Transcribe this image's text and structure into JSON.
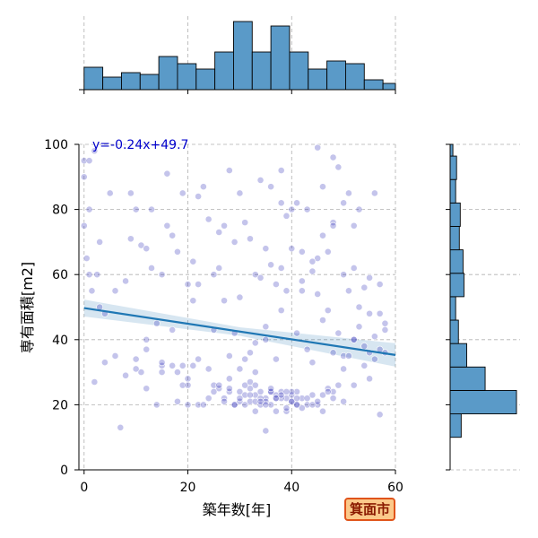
{
  "badge": {
    "label": "箕面市"
  },
  "chart_data": {
    "type": "scatter",
    "title": "",
    "xlabel": "築年数[年]",
    "ylabel": "専有面積[m2]",
    "xlim": [
      -1,
      60
    ],
    "ylim": [
      0,
      100
    ],
    "xticks": [
      0,
      20,
      40,
      60
    ],
    "yticks": [
      0,
      20,
      40,
      60,
      80,
      100
    ],
    "grid": true,
    "point_color": "#2a2ab8",
    "regression": {
      "slope": -0.24,
      "intercept": 49.7,
      "label": "y=-0.24x+49.7",
      "color": "#1f77b4"
    },
    "marginal_x_hist": {
      "bin_edges": [
        0,
        3.6,
        7.2,
        10.8,
        14.4,
        18,
        21.6,
        25.2,
        28.8,
        32.4,
        36,
        39.6,
        43.2,
        46.8,
        50.4,
        54,
        57.6,
        60
      ],
      "counts": [
        25,
        14,
        19,
        17,
        37,
        29,
        23,
        42,
        76,
        42,
        71,
        42,
        23,
        32,
        29,
        11,
        7
      ]
    },
    "marginal_y_hist": {
      "bin_edges": [
        10,
        17.2,
        24.4,
        31.6,
        38.8,
        46,
        53.2,
        60.4,
        67.6,
        74.8,
        82,
        89.2,
        96.4,
        100
      ],
      "counts": [
        12,
        72,
        38,
        18,
        9,
        6,
        15,
        14,
        10,
        11,
        6,
        7,
        3
      ]
    },
    "series": [
      {
        "x": [
          0,
          0,
          0,
          0.5,
          1,
          1,
          1.5,
          2,
          2.5,
          3,
          3,
          4,
          5,
          6,
          7,
          8,
          9,
          9,
          10,
          10,
          11,
          11,
          12,
          12,
          12,
          13,
          13,
          14,
          14,
          15,
          15,
          15,
          16,
          16,
          17,
          17,
          17,
          18,
          18,
          19,
          19,
          19,
          20,
          20,
          20,
          21,
          21,
          21,
          22,
          22,
          22,
          23,
          23,
          24,
          24,
          24,
          25,
          25,
          25,
          26,
          26,
          26,
          27,
          27,
          27,
          28,
          28,
          28,
          29,
          29,
          29,
          30,
          30,
          30,
          30,
          31,
          31,
          31,
          31,
          32,
          32,
          32,
          32,
          33,
          33,
          33,
          33,
          34,
          34,
          34,
          34,
          35,
          35,
          35,
          35,
          36,
          36,
          36,
          36,
          37,
          37,
          37,
          37,
          38,
          38,
          38,
          38,
          39,
          39,
          39,
          39,
          40,
          40,
          40,
          40,
          41,
          41,
          41,
          41,
          42,
          42,
          42,
          43,
          43,
          43,
          44,
          44,
          44,
          45,
          45,
          45,
          46,
          46,
          46,
          47,
          47,
          47,
          48,
          48,
          48,
          49,
          49,
          50,
          50,
          50,
          51,
          51,
          52,
          52,
          52,
          53,
          53,
          54,
          54,
          55,
          55,
          56,
          56,
          57,
          57,
          58,
          58,
          35,
          38,
          32,
          30,
          33,
          36,
          42,
          28,
          31,
          34,
          37,
          40,
          29,
          27,
          26,
          39,
          41,
          43,
          44,
          45,
          46,
          47,
          48,
          49,
          50,
          51,
          52,
          53,
          54,
          55,
          56,
          57,
          58,
          50,
          48,
          45,
          42,
          38,
          35,
          33,
          30,
          28,
          25,
          22,
          20,
          18,
          15,
          12,
          10,
          8,
          6,
          4,
          2,
          1,
          44,
          46,
          48,
          52,
          55,
          57,
          32,
          33,
          34,
          35,
          36,
          37,
          38,
          39,
          40,
          41
        ],
        "y": [
          95,
          90,
          75,
          65,
          80,
          60,
          55,
          98,
          60,
          70,
          50,
          48,
          85,
          55,
          13,
          58,
          71,
          85,
          34,
          80,
          69,
          30,
          68,
          25,
          40,
          80,
          62,
          45,
          20,
          60,
          30,
          32,
          91,
          75,
          72,
          43,
          32,
          67,
          21,
          85,
          32,
          26,
          57,
          28,
          20,
          64,
          52,
          32,
          84,
          57,
          20,
          87,
          20,
          77,
          31,
          22,
          60,
          43,
          26,
          73,
          62,
          25,
          75,
          52,
          22,
          92,
          35,
          24,
          70,
          42,
          20,
          85,
          53,
          24,
          21,
          76,
          34,
          23,
          20,
          71,
          36,
          25,
          21,
          60,
          30,
          23,
          18,
          89,
          59,
          24,
          20,
          68,
          40,
          22,
          12,
          87,
          63,
          24,
          20,
          57,
          34,
          22,
          18,
          92,
          82,
          62,
          24,
          78,
          55,
          22,
          18,
          80,
          68,
          23,
          21,
          82,
          42,
          24,
          20,
          67,
          55,
          22,
          80,
          37,
          20,
          61,
          33,
          23,
          99,
          54,
          20,
          87,
          46,
          18,
          67,
          49,
          25,
          96,
          36,
          24,
          93,
          42,
          60,
          35,
          21,
          85,
          55,
          75,
          40,
          26,
          80,
          50,
          56,
          32,
          48,
          28,
          85,
          41,
          57,
          17,
          43,
          36,
          21,
          22,
          23,
          22,
          21,
          24,
          19,
          25,
          26,
          22,
          23,
          24,
          20,
          21,
          26,
          19,
          20,
          22,
          20,
          21,
          23,
          24,
          22,
          26,
          31,
          35,
          40,
          44,
          38,
          36,
          34,
          37,
          45,
          82,
          76,
          65,
          58,
          49,
          44,
          39,
          31,
          28,
          24,
          34,
          26,
          30,
          33,
          37,
          31,
          29,
          35,
          33,
          27,
          95,
          64,
          72,
          75,
          62,
          59,
          48,
          27,
          26,
          21,
          20,
          25,
          22,
          23,
          24,
          21,
          22
        ]
      }
    ]
  }
}
